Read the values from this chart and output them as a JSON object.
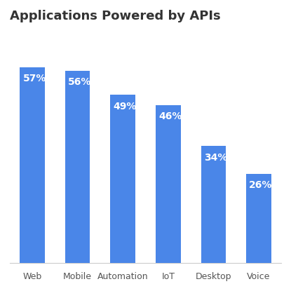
{
  "title": "Applications Powered by APIs",
  "categories": [
    "Web",
    "Mobile",
    "Automation",
    "IoT",
    "Desktop",
    "Voice"
  ],
  "values": [
    57,
    56,
    49,
    46,
    34,
    26
  ],
  "labels": [
    "57%",
    "56%",
    "49%",
    "46%",
    "34%",
    "26%"
  ],
  "bar_color": "#4A86E8",
  "background_color": "#FFFFFF",
  "title_fontsize": 13,
  "label_fontsize": 10,
  "xlabel_fontsize": 9,
  "ylim": [
    0,
    68
  ],
  "bar_width": 0.55
}
